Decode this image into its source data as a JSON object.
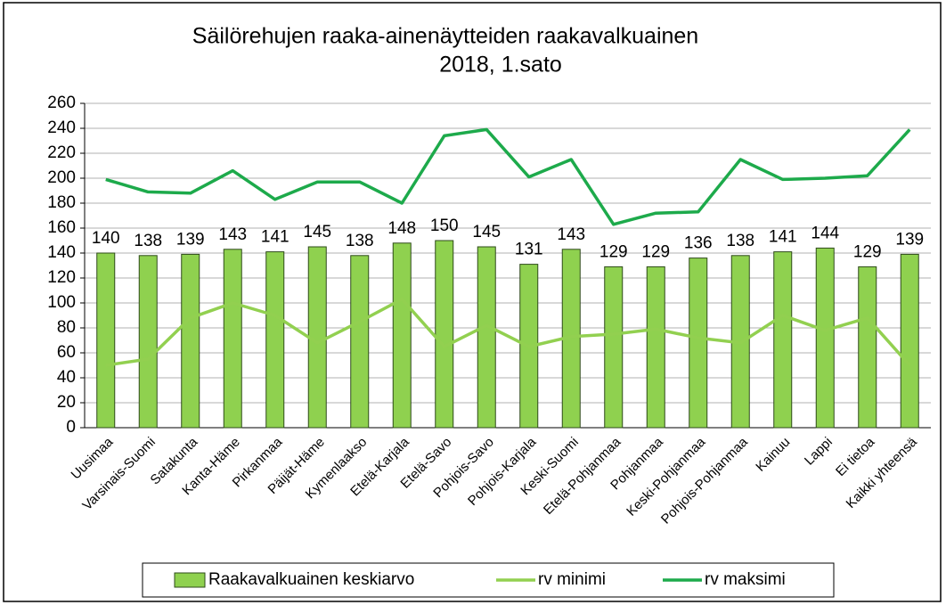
{
  "chart_data": {
    "type": "bar",
    "title": [
      "Säilörehujen raaka-ainenäytteiden raakavalkuainen",
      "2018, 1.sato"
    ],
    "categories": [
      "Uusimaa",
      "Varsinais-Suomi",
      "Satakunta",
      "Kanta-Häme",
      "Pirkanmaa",
      "Päijät-Häme",
      "Kymenlaakso",
      "Etelä-Karjala",
      "Etelä-Savo",
      "Pohjois-Savo",
      "Pohjois-Karjala",
      "Keski-Suomi",
      "Etelä-Pohjanmaa",
      "Pohjanmaa",
      "Keski-Pohjanmaa",
      "Pohjois-Pohjanmaa",
      "Kainuu",
      "Lappi",
      "Ei tietoa",
      "Kaikki yhteensä"
    ],
    "series": [
      {
        "name": "Raakavalkuainen keskiarvo",
        "type": "bar",
        "color": "#8fd14f",
        "values": [
          140,
          138,
          139,
          143,
          141,
          145,
          138,
          148,
          150,
          145,
          131,
          143,
          129,
          129,
          136,
          138,
          141,
          144,
          129,
          139
        ]
      },
      {
        "name": "rv minimi",
        "type": "line",
        "color": "#92d050",
        "values": [
          50,
          55,
          88,
          100,
          90,
          68,
          85,
          103,
          65,
          82,
          65,
          73,
          75,
          79,
          72,
          68,
          90,
          78,
          88,
          50
        ]
      },
      {
        "name": "rv maksimi",
        "type": "line",
        "color": "#1daa4b",
        "values": [
          199,
          189,
          188,
          206,
          183,
          197,
          197,
          180,
          234,
          239,
          201,
          215,
          163,
          172,
          173,
          215,
          199,
          200,
          202,
          239
        ]
      }
    ],
    "ylim": [
      0,
      260
    ],
    "yticks": [
      0,
      20,
      40,
      60,
      80,
      100,
      120,
      140,
      160,
      180,
      200,
      220,
      240,
      260
    ],
    "grid": true,
    "legend": "bottom"
  }
}
